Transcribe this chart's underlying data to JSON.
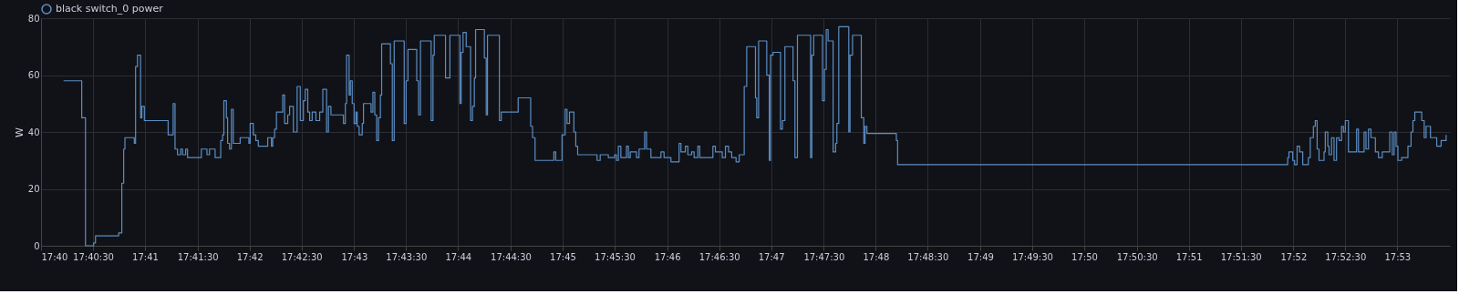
{
  "chart_data": {
    "type": "step",
    "ylabel": "W",
    "legend": "top",
    "grid": true,
    "xlim": [
      17.6667,
      17.8917
    ],
    "ylim": [
      0,
      80
    ],
    "yticks": [
      0,
      20,
      40,
      60,
      80
    ],
    "xticks": [
      {
        "value": 17.6667,
        "label": "17:40"
      },
      {
        "value": 17.675,
        "label": "17:40:30"
      },
      {
        "value": 17.6833,
        "label": "17:41"
      },
      {
        "value": 17.6917,
        "label": "17:41:30"
      },
      {
        "value": 17.7,
        "label": "17:42"
      },
      {
        "value": 17.7083,
        "label": "17:42:30"
      },
      {
        "value": 17.7167,
        "label": "17:43"
      },
      {
        "value": 17.725,
        "label": "17:43:30"
      },
      {
        "value": 17.7333,
        "label": "17:44"
      },
      {
        "value": 17.7417,
        "label": "17:44:30"
      },
      {
        "value": 17.75,
        "label": "17:45"
      },
      {
        "value": 17.7583,
        "label": "17:45:30"
      },
      {
        "value": 17.7667,
        "label": "17:46"
      },
      {
        "value": 17.775,
        "label": "17:46:30"
      },
      {
        "value": 17.7833,
        "label": "17:47"
      },
      {
        "value": 17.7917,
        "label": "17:47:30"
      },
      {
        "value": 17.8,
        "label": "17:48"
      },
      {
        "value": 17.8083,
        "label": "17:48:30"
      },
      {
        "value": 17.8167,
        "label": "17:49"
      },
      {
        "value": 17.825,
        "label": "17:49:30"
      },
      {
        "value": 17.8333,
        "label": "17:50"
      },
      {
        "value": 17.8417,
        "label": "17:50:30"
      },
      {
        "value": 17.85,
        "label": "17:51"
      },
      {
        "value": 17.8583,
        "label": "17:51:30"
      },
      {
        "value": 17.8667,
        "label": "17:52"
      },
      {
        "value": 17.875,
        "label": "17:52:30"
      },
      {
        "value": 17.8833,
        "label": "17:53"
      }
    ],
    "series": [
      {
        "name": "black switch_0 power",
        "color": "#5b8ec4",
        "x": [
          17.6703,
          17.6732,
          17.6738,
          17.6751,
          17.6754,
          17.6791,
          17.6796,
          17.6799,
          17.6801,
          17.6816,
          17.6818,
          17.6821,
          17.6826,
          17.6828,
          17.6832,
          17.687,
          17.6878,
          17.6881,
          17.6885,
          17.689,
          17.6893,
          17.6898,
          17.6901,
          17.6923,
          17.6932,
          17.6936,
          17.6945,
          17.6954,
          17.6957,
          17.6959,
          17.6963,
          17.6965,
          17.6968,
          17.6971,
          17.6974,
          17.6985,
          17.6999,
          17.7001,
          17.7006,
          17.701,
          17.7014,
          17.7029,
          17.7035,
          17.7037,
          17.704,
          17.7043,
          17.7053,
          17.7056,
          17.7061,
          17.7064,
          17.707,
          17.7076,
          17.7081,
          17.7086,
          17.7089,
          17.7093,
          17.7096,
          17.71,
          17.7106,
          17.7112,
          17.7117,
          17.7123,
          17.7126,
          17.713,
          17.715,
          17.7153,
          17.7155,
          17.7159,
          17.7161,
          17.7164,
          17.7167,
          17.717,
          17.7172,
          17.7175,
          17.718,
          17.7182,
          17.7194,
          17.7197,
          17.72,
          17.7203,
          17.7206,
          17.7209,
          17.7211,
          17.7225,
          17.7228,
          17.7231,
          17.7247,
          17.725,
          17.7253,
          17.7267,
          17.727,
          17.7273,
          17.729,
          17.7293,
          17.7295,
          17.7313,
          17.732,
          17.7336,
          17.7338,
          17.7341,
          17.7346,
          17.7353,
          17.7356,
          17.7359,
          17.7361,
          17.7375,
          17.7378,
          17.738,
          17.7399,
          17.7402,
          17.7429,
          17.7449,
          17.7452,
          17.7456,
          17.7486,
          17.7489,
          17.7499,
          17.7504,
          17.7507,
          17.7511,
          17.7518,
          17.7521,
          17.7524,
          17.7555,
          17.756,
          17.7573,
          17.7583,
          17.7586,
          17.7589,
          17.7593,
          17.7602,
          17.7605,
          17.7608,
          17.7618,
          17.7622,
          17.7631,
          17.7634,
          17.7641,
          17.7657,
          17.7662,
          17.7673,
          17.7686,
          17.7689,
          17.7696,
          17.77,
          17.7706,
          17.771,
          17.7716,
          17.7719,
          17.774,
          17.7744,
          17.7755,
          17.776,
          17.7765,
          17.777,
          17.7777,
          17.7782,
          17.779,
          17.7794,
          17.7808,
          17.781,
          17.7813,
          17.7826,
          17.783,
          17.7832,
          17.7836,
          17.7848,
          17.7851,
          17.7855,
          17.7868,
          17.7871,
          17.7875,
          17.7896,
          17.7898,
          17.7901,
          17.7915,
          17.7918,
          17.7921,
          17.7924,
          17.7932,
          17.7936,
          17.7938,
          17.7941,
          17.7957,
          17.7959,
          17.7963,
          17.7977,
          17.7981,
          17.7983,
          17.7986,
          17.8033,
          17.8035,
          17.8658,
          17.866,
          17.8666,
          17.8669,
          17.8673,
          17.8677,
          17.8682,
          17.8691,
          17.8694,
          17.8699,
          17.8702,
          17.8705,
          17.8708,
          17.8716,
          17.8718,
          17.8722,
          17.8724,
          17.8728,
          17.8732,
          17.8736,
          17.874,
          17.8744,
          17.8747,
          17.875,
          17.8755,
          17.8768,
          17.8771,
          17.878,
          17.8783,
          17.8787,
          17.8791,
          17.8798,
          17.8803,
          17.8809,
          17.8821,
          17.8825,
          17.8828,
          17.8831,
          17.8834,
          17.884,
          17.885,
          17.8855,
          17.8858,
          17.8861,
          17.8872,
          17.8876,
          17.8879,
          17.8886,
          17.8896,
          17.8903,
          17.8911
        ],
        "values": [
          58,
          45,
          0,
          1,
          3.5,
          4.5,
          22,
          34,
          38,
          36,
          63,
          67,
          45,
          49,
          44,
          39,
          50,
          34,
          32,
          34,
          32,
          34,
          31,
          34,
          32,
          34,
          31,
          37,
          39,
          51,
          45,
          36,
          34,
          48,
          36,
          38,
          36,
          43,
          39,
          37,
          35,
          38,
          35,
          38,
          41,
          47,
          53,
          43,
          46,
          49,
          40,
          56,
          44,
          51,
          55,
          47,
          44,
          47,
          44,
          47,
          55,
          40,
          49,
          46,
          43,
          50,
          67,
          53,
          58,
          50,
          43,
          47,
          42,
          39,
          43,
          50,
          47,
          54,
          46,
          37,
          45,
          53,
          71,
          64,
          37,
          72,
          43,
          58,
          69,
          58,
          46,
          72,
          44,
          67,
          74,
          59,
          74,
          50,
          68,
          75,
          70,
          44,
          49,
          59,
          76,
          66,
          46,
          74,
          44,
          47,
          52,
          42,
          38,
          30,
          33,
          30,
          39,
          48,
          43,
          47,
          40,
          35,
          32,
          30,
          32,
          31,
          32,
          30,
          35,
          31,
          35,
          31,
          33,
          31,
          34,
          40,
          34,
          31,
          33,
          31,
          29.5,
          36,
          33,
          35,
          32,
          33,
          31,
          35,
          31,
          35,
          33,
          31,
          35,
          33,
          31,
          29.5,
          32,
          56,
          70,
          52,
          45,
          72,
          60,
          30,
          67,
          68,
          41,
          44,
          70,
          58,
          31,
          74,
          31,
          67,
          74,
          51,
          62,
          76,
          72,
          33,
          36,
          43,
          77,
          40,
          67,
          74,
          45,
          36,
          42,
          39.5,
          37,
          28.5,
          31,
          33,
          30,
          28.5,
          35,
          33,
          28.5,
          31,
          38,
          42,
          44,
          34,
          30,
          33,
          40,
          35,
          32,
          38,
          30,
          38,
          37,
          42,
          40,
          44,
          33,
          41,
          33,
          40,
          34,
          41,
          38,
          33,
          31,
          33,
          40,
          32,
          40,
          35,
          30,
          31,
          35,
          40,
          44,
          47,
          44,
          38,
          42,
          38,
          35,
          37,
          39
        ]
      }
    ]
  }
}
